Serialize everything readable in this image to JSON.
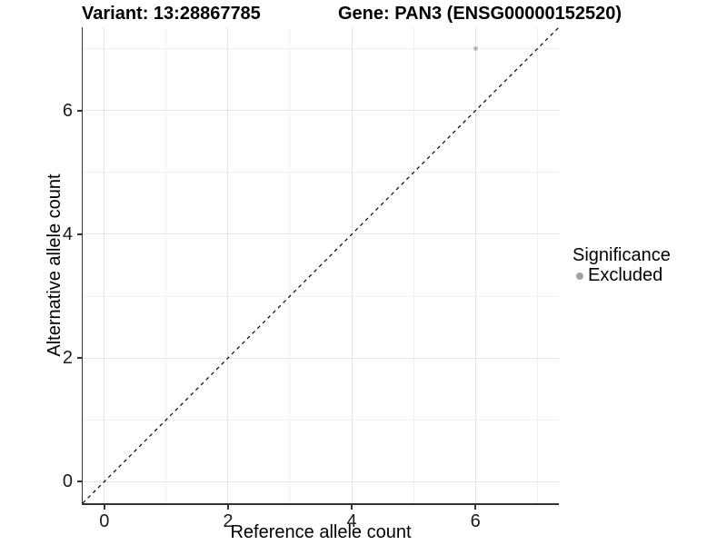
{
  "chart_data": {
    "type": "scatter",
    "title_left": "Variant: 13:28867785",
    "title_right": "Gene: PAN3 (ENSG00000152520)",
    "xlabel": "Reference allele count",
    "ylabel": "Alternative allele count",
    "xlim": [
      -0.35,
      7.35
    ],
    "ylim": [
      -0.35,
      7.35
    ],
    "x_ticks": [
      0,
      2,
      4,
      6
    ],
    "y_ticks": [
      0,
      2,
      4,
      6
    ],
    "x_minor": [
      1,
      3,
      5,
      7
    ],
    "y_minor": [
      1,
      3,
      5,
      7
    ],
    "grid": "major and minor, light gray, on white panel",
    "axis_line_color": "#333333",
    "reference_line": {
      "equation": "y = x",
      "style": "dashed",
      "color": "#000000"
    },
    "series": [
      {
        "name": "Excluded",
        "color": "#b9b9b9",
        "point_size": 5,
        "points": [
          {
            "x": 6,
            "y": 7
          }
        ]
      }
    ],
    "legend": {
      "title": "Significance",
      "position": "right",
      "entries": [
        {
          "label": "Excluded",
          "color": "#a3a3a3"
        }
      ]
    }
  }
}
